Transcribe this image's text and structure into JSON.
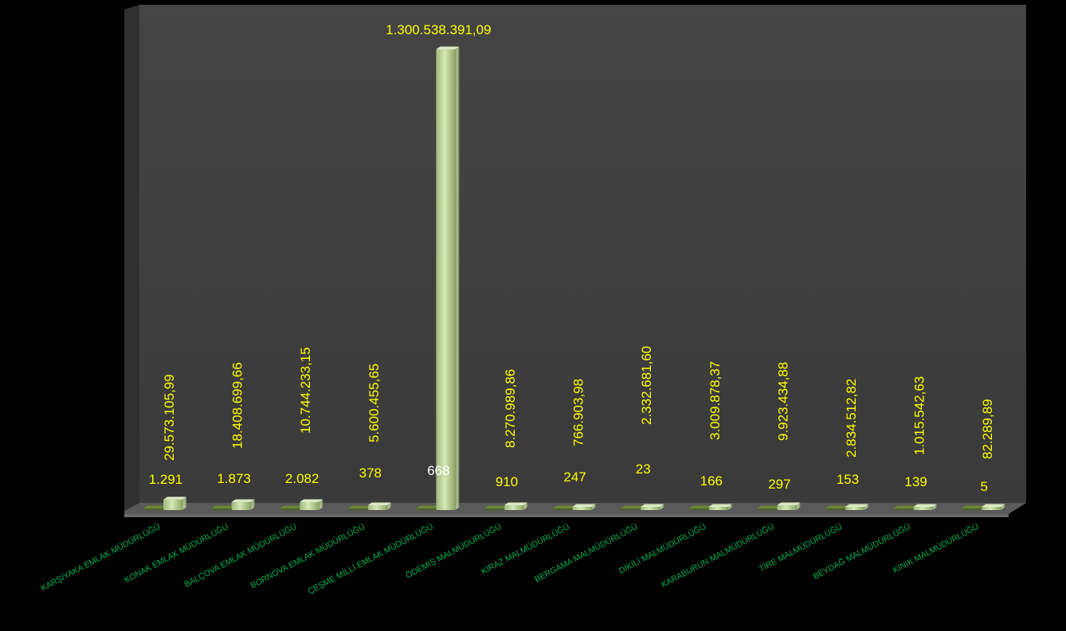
{
  "chart_data": {
    "type": "bar",
    "categories": [
      "KARŞIYAKA EMLAK MÜDÜRLÜĞÜ",
      "KONAK EMLAK MÜDÜRLÜĞÜ",
      "BALÇOVA EMLAK MÜDÜRLÜĞÜ",
      "BORNOVA EMLAK MÜDÜRLÜĞÜ",
      "ÇEŞME MİLLİ EMLAK MÜDÜRLÜĞÜ",
      "ÖDEMİŞ MALMÜDÜRLÜĞÜ",
      "KİRAZ MALMÜDÜRLÜĞÜ",
      "BERGAMA MALMÜDÜRLÜĞÜ",
      "DİKİLİ MALMÜDÜRLÜĞÜ",
      "KARABURUN MALMÜDÜRLÜĞÜ",
      "TİRE MALMÜDÜRLÜĞÜ",
      "BEYDAĞ MALMÜDÜRLÜĞÜ",
      "KINIK MALMÜDÜRLÜĞÜ"
    ],
    "series": [
      {
        "values": [
          1291,
          1873,
          2082,
          378,
          668,
          910,
          247,
          23,
          166,
          297,
          153,
          139,
          5
        ],
        "labels": [
          "1.291",
          "1.873",
          "2.082",
          "378",
          "668",
          "910",
          "247",
          "23",
          "166",
          "297",
          "153",
          "139",
          "5"
        ]
      },
      {
        "values": [
          29573105.99,
          18408699.66,
          10744233.15,
          5600455.65,
          1300538391.09,
          8270989.86,
          766903.98,
          2332681.6,
          3009878.37,
          9923434.88,
          2834512.82,
          1015542.63,
          82289.89
        ],
        "labels": [
          "29.573.105,99",
          "18.408.699,66",
          "10.744.233,15",
          "5.600.455,65",
          "1.300.538.391,09",
          "8.270.989,86",
          "766.903,98",
          "2.332.681,60",
          "3.009.878,37",
          "9.923.434,88",
          "2.834.512,82",
          "1.015.542,63",
          "82.289,89"
        ]
      }
    ],
    "ylim": [
      0,
      1300538391.09
    ],
    "grid": false,
    "legend": "none",
    "colors": {
      "background": "#000000",
      "wall": "#3f3f3f",
      "floor": "#5a5a5a",
      "series1": "#4f6228",
      "series2": "#c3d69b",
      "value_label": "#ffff00",
      "category_label": "#00b050"
    }
  }
}
